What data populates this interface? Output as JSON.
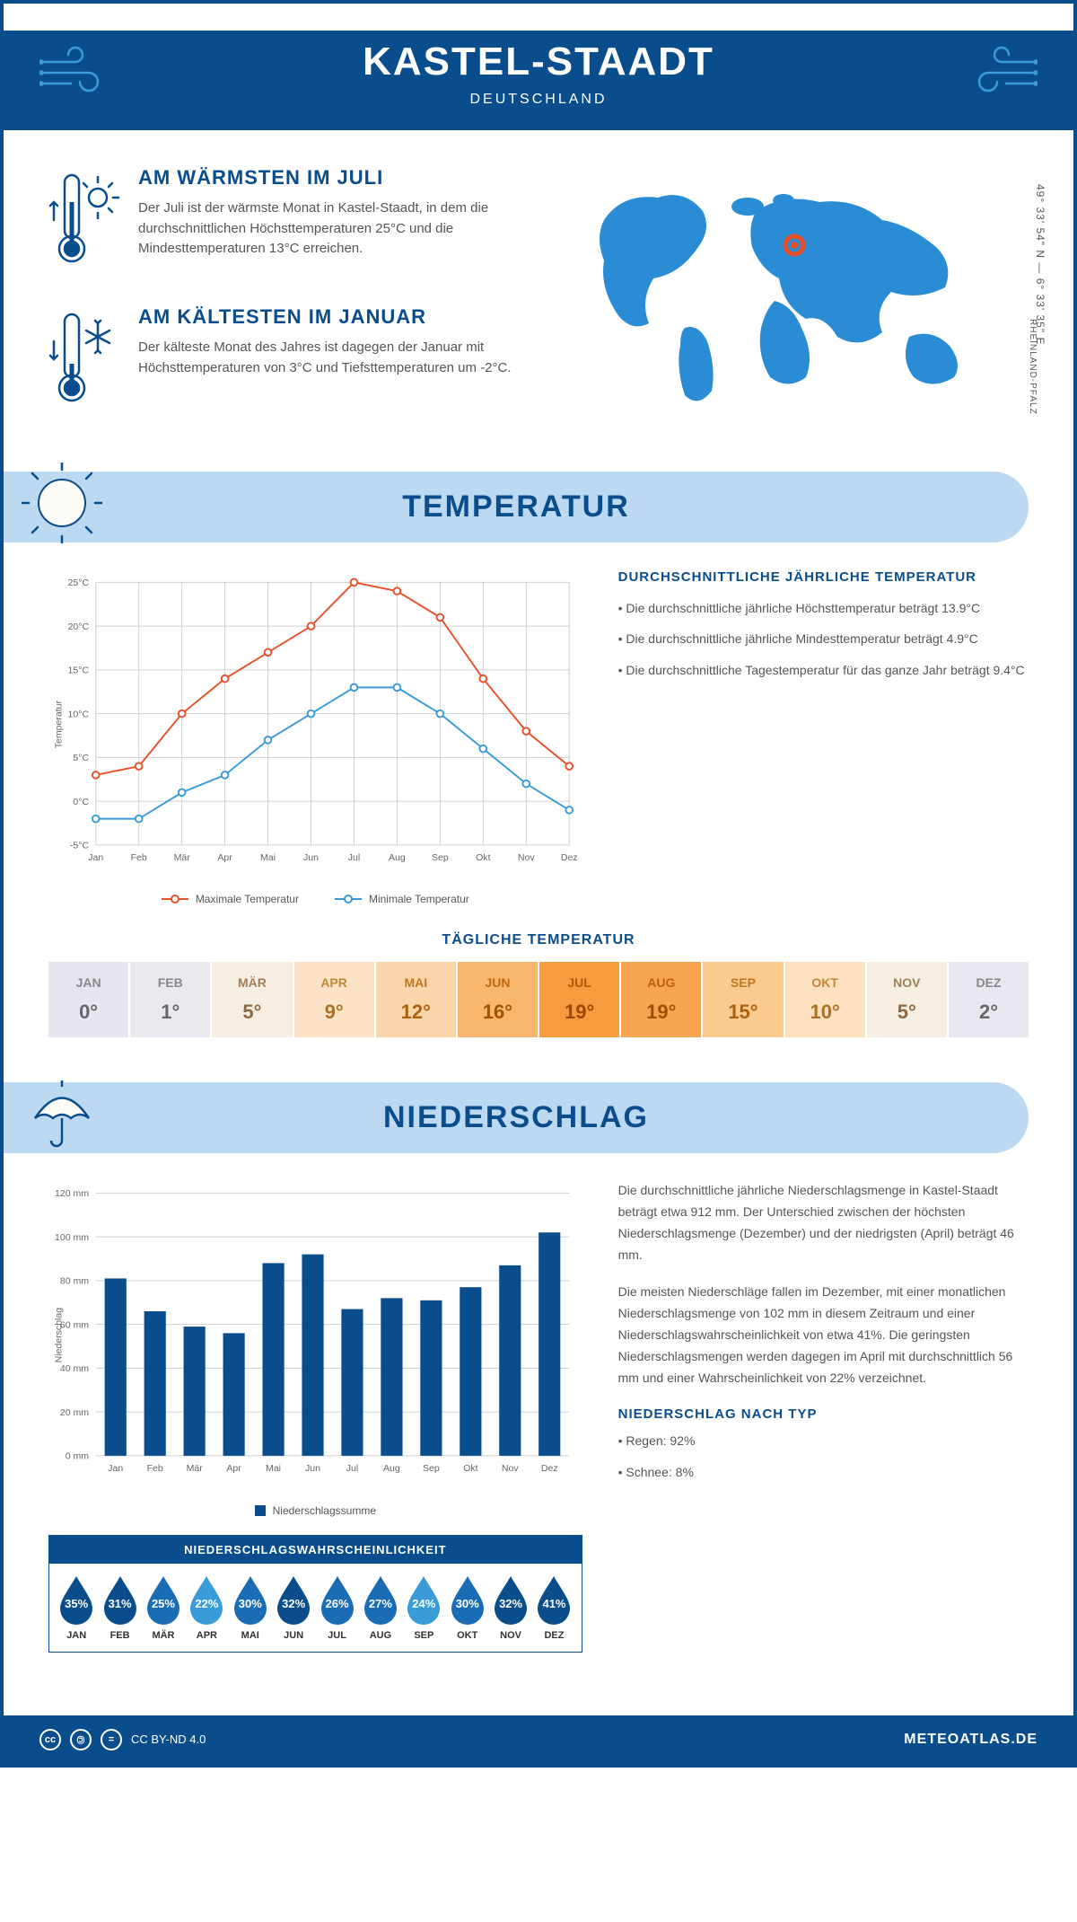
{
  "header": {
    "title": "KASTEL-STAADT",
    "subtitle": "DEUTSCHLAND"
  },
  "coords": "49° 33' 54\" N — 6° 33' 35\" E",
  "region": "RHEINLAND-PFALZ",
  "facts": {
    "warm": {
      "title": "AM WÄRMSTEN IM JULI",
      "text": "Der Juli ist der wärmste Monat in Kastel-Staadt, in dem die durchschnittlichen Höchsttemperaturen 25°C und die Mindesttemperaturen 13°C erreichen."
    },
    "cold": {
      "title": "AM KÄLTESTEN IM JANUAR",
      "text": "Der kälteste Monat des Jahres ist dagegen der Januar mit Höchsttemperaturen von 3°C und Tiefsttemperaturen um -2°C."
    }
  },
  "temp_section": {
    "title": "TEMPERATUR",
    "chart": {
      "type": "line",
      "months": [
        "Jan",
        "Feb",
        "Mär",
        "Apr",
        "Mai",
        "Jun",
        "Jul",
        "Aug",
        "Sep",
        "Okt",
        "Nov",
        "Dez"
      ],
      "max_series": {
        "label": "Maximale Temperatur",
        "color": "#e8502a",
        "values": [
          3,
          4,
          10,
          14,
          17,
          20,
          25,
          24,
          21,
          14,
          8,
          4
        ]
      },
      "min_series": {
        "label": "Minimale Temperatur",
        "color": "#3a9bd9",
        "values": [
          -2,
          -2,
          1,
          3,
          7,
          10,
          13,
          13,
          10,
          6,
          2,
          -1
        ]
      },
      "ylabel": "Temperatur",
      "ylim": [
        -5,
        25
      ],
      "ytick_step": 5,
      "grid_color": "#d0d0d0",
      "background_color": "#ffffff",
      "line_width": 2,
      "marker": "circle",
      "marker_size": 4,
      "label_fontsize": 11
    },
    "stats": {
      "title": "DURCHSCHNITTLICHE JÄHRLICHE TEMPERATUR",
      "b1": "• Die durchschnittliche jährliche Höchsttemperatur beträgt 13.9°C",
      "b2": "• Die durchschnittliche jährliche Mindesttemperatur beträgt 4.9°C",
      "b3": "• Die durchschnittliche Tagestemperatur für das ganze Jahr beträgt 9.4°C"
    },
    "daily_table": {
      "title": "TÄGLICHE TEMPERATUR",
      "months": [
        "JAN",
        "FEB",
        "MÄR",
        "APR",
        "MAI",
        "JUN",
        "JUL",
        "AUG",
        "SEP",
        "OKT",
        "NOV",
        "DEZ"
      ],
      "values": [
        "0°",
        "1°",
        "5°",
        "9°",
        "12°",
        "16°",
        "19°",
        "19°",
        "15°",
        "10°",
        "5°",
        "2°"
      ],
      "bg_colors": [
        "#e8e5f0",
        "#ece8ef",
        "#f7eee3",
        "#fce3c8",
        "#fbd5aa",
        "#f9b66d",
        "#f79b3f",
        "#f8a552",
        "#fbca8f",
        "#fce0c0",
        "#f6ede3",
        "#ebe7f0"
      ],
      "label_colors": [
        "#888",
        "#888",
        "#a08058",
        "#c08838",
        "#c07820",
        "#c06810",
        "#b05800",
        "#b86006",
        "#c07820",
        "#c08838",
        "#a08058",
        "#888"
      ],
      "value_colors": [
        "#666",
        "#666",
        "#8a6a40",
        "#aa7222",
        "#aa6210",
        "#a55200",
        "#9a4800",
        "#a04e02",
        "#aa6210",
        "#aa7222",
        "#8a6a40",
        "#666"
      ]
    }
  },
  "precip_section": {
    "title": "NIEDERSCHLAG",
    "chart": {
      "type": "bar",
      "months": [
        "Jan",
        "Feb",
        "Mär",
        "Apr",
        "Mai",
        "Jun",
        "Jul",
        "Aug",
        "Sep",
        "Okt",
        "Nov",
        "Dez"
      ],
      "values": [
        81,
        66,
        59,
        56,
        88,
        92,
        67,
        72,
        71,
        77,
        87,
        102
      ],
      "bar_color": "#0a4d8c",
      "ylabel": "Niederschlag",
      "ylim": [
        0,
        120
      ],
      "ytick_step": 20,
      "grid_color": "#d0d0d0",
      "background_color": "#ffffff",
      "bar_width": 0.55,
      "legend_label": "Niederschlagssumme",
      "label_fontsize": 11
    },
    "body1": "Die durchschnittliche jährliche Niederschlagsmenge in Kastel-Staadt beträgt etwa 912 mm. Der Unterschied zwischen der höchsten Niederschlagsmenge (Dezember) und der niedrigsten (April) beträgt 46 mm.",
    "body2": "Die meisten Niederschläge fallen im Dezember, mit einer monatlichen Niederschlagsmenge von 102 mm in diesem Zeitraum und einer Niederschlagswahrscheinlichkeit von etwa 41%. Die geringsten Niederschlagsmengen werden dagegen im April mit durchschnittlich 56 mm und einer Wahrscheinlichkeit von 22% verzeichnet.",
    "prob": {
      "title": "NIEDERSCHLAGSWAHRSCHEINLICHKEIT",
      "months": [
        "JAN",
        "FEB",
        "MÄR",
        "APR",
        "MAI",
        "JUN",
        "JUL",
        "AUG",
        "SEP",
        "OKT",
        "NOV",
        "DEZ"
      ],
      "values": [
        "35%",
        "31%",
        "25%",
        "22%",
        "30%",
        "32%",
        "26%",
        "27%",
        "24%",
        "30%",
        "32%",
        "41%"
      ],
      "colors": [
        "#0a4d8c",
        "#0a4d8c",
        "#1a6db5",
        "#3a9bd9",
        "#1a6db5",
        "#0a4d8c",
        "#1a6db5",
        "#1a6db5",
        "#3a9bd9",
        "#1a6db5",
        "#0a4d8c",
        "#0a4d8c"
      ]
    },
    "by_type": {
      "title": "NIEDERSCHLAG NACH TYP",
      "rain": "• Regen: 92%",
      "snow": "• Schnee: 8%"
    }
  },
  "footer": {
    "license": "CC BY-ND 4.0",
    "site": "METEOATLAS.DE"
  }
}
